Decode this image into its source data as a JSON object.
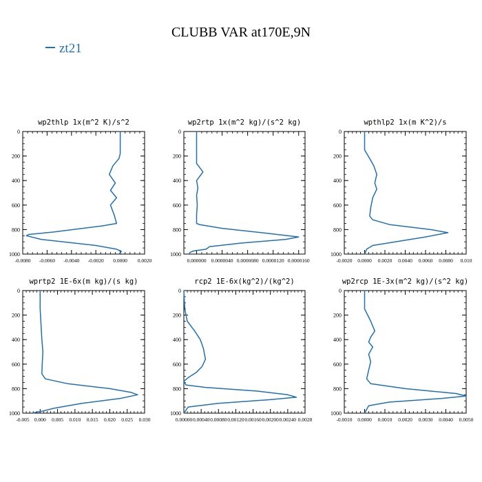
{
  "title": "CLUBB VAR at170E,9N",
  "legend": {
    "label": "zt21",
    "color": "#1f6fb4"
  },
  "chart_data": [
    {
      "type": "line",
      "title": "wp2thlp  1x(m^2 K)/s^2",
      "xlim": [
        -0.008,
        0.002
      ],
      "xticks": [
        -0.008,
        -0.006,
        -0.004,
        -0.002,
        0.0,
        0.002
      ],
      "xticklabels": [
        "-0.0080",
        "-0.0060",
        "-0.0040",
        "-0.0020",
        "0.0000",
        "0.0020"
      ],
      "ylim": [
        0,
        1000
      ],
      "yticks": [
        0,
        200,
        400,
        600,
        800,
        1000
      ],
      "yticklabels": [
        "0",
        "200",
        "400",
        "600",
        "800",
        "1000"
      ],
      "series": [
        {
          "color": "#1f6fb4",
          "points": [
            [
              0.0,
              0
            ],
            [
              0.0,
              100
            ],
            [
              0.0,
              180
            ],
            [
              -0.0001,
              220
            ],
            [
              -0.0006,
              280
            ],
            [
              -0.0009,
              350
            ],
            [
              -0.0004,
              420
            ],
            [
              -0.0008,
              480
            ],
            [
              -0.0003,
              540
            ],
            [
              -0.0008,
              600
            ],
            [
              -0.0005,
              680
            ],
            [
              -0.0003,
              750
            ],
            [
              -0.0015,
              770
            ],
            [
              -0.0055,
              820
            ],
            [
              -0.0075,
              840
            ],
            [
              -0.0077,
              850
            ],
            [
              -0.0065,
              880
            ],
            [
              -0.002,
              930
            ],
            [
              -0.0003,
              960
            ],
            [
              0.0001,
              980
            ],
            [
              -0.0001,
              1000
            ]
          ]
        }
      ]
    },
    {
      "type": "line",
      "title": "wp2rtp  1x(m^2 kg)/(s^2 kg)",
      "xlim": [
        -2e-06,
        1.7e-05
      ],
      "xticks": [
        0.0,
        4e-06,
        8e-06,
        1.2e-05,
        1.6e-05
      ],
      "xticklabels": [
        "0.000000",
        "0.0000040",
        "0.0000080",
        "0.0000120",
        "0.0000160"
      ],
      "ylim": [
        0,
        1000
      ],
      "yticks": [
        0,
        200,
        400,
        600,
        800,
        1000
      ],
      "yticklabels": [
        "0",
        "200",
        "400",
        "600",
        "800",
        "1000"
      ],
      "series": [
        {
          "color": "#1f6fb4",
          "points": [
            [
              0.0,
              0
            ],
            [
              0.0,
              120
            ],
            [
              0.0,
              260
            ],
            [
              1e-06,
              330
            ],
            [
              0.0,
              400
            ],
            [
              2e-07,
              460
            ],
            [
              0.0,
              520
            ],
            [
              1e-07,
              600
            ],
            [
              0.0,
              680
            ],
            [
              0.0,
              750
            ],
            [
              5e-07,
              760
            ],
            [
              4e-06,
              790
            ],
            [
              1.1e-05,
              830
            ],
            [
              1.6e-05,
              860
            ],
            [
              1.4e-05,
              880
            ],
            [
              7e-06,
              910
            ],
            [
              2e-06,
              940
            ],
            [
              1.5e-06,
              960
            ],
            [
              -5e-07,
              975
            ],
            [
              -1e-06,
              985
            ],
            [
              -1.2e-06,
              1000
            ]
          ]
        }
      ]
    },
    {
      "type": "line",
      "title": "wpthlp2  1x(m K^2)/s",
      "xlim": [
        -0.002,
        0.01
      ],
      "xticks": [
        -0.002,
        0.0,
        0.002,
        0.004,
        0.006,
        0.008,
        0.01
      ],
      "xticklabels": [
        "-0.0020",
        "0.0000",
        "0.0020",
        "0.0040",
        "0.0060",
        "0.0080",
        "0.010"
      ],
      "ylim": [
        0,
        1000
      ],
      "yticks": [
        0,
        200,
        400,
        600,
        800,
        1000
      ],
      "yticklabels": [
        "0",
        "200",
        "400",
        "600",
        "800",
        "1000"
      ],
      "series": [
        {
          "color": "#1f6fb4",
          "points": [
            [
              0.0,
              0
            ],
            [
              0.0,
              150
            ],
            [
              0.0005,
              220
            ],
            [
              0.0009,
              280
            ],
            [
              0.0012,
              350
            ],
            [
              0.001,
              420
            ],
            [
              0.0012,
              470
            ],
            [
              0.0008,
              540
            ],
            [
              0.0006,
              620
            ],
            [
              0.0005,
              690
            ],
            [
              0.0008,
              720
            ],
            [
              0.0025,
              760
            ],
            [
              0.0065,
              800
            ],
            [
              0.0082,
              825
            ],
            [
              0.006,
              860
            ],
            [
              0.003,
              900
            ],
            [
              0.0008,
              930
            ],
            [
              0.0002,
              960
            ],
            [
              0.0,
              1000
            ]
          ]
        }
      ]
    },
    {
      "type": "line",
      "title": "wprtp2  1E-6x(m kg)/(s kg)",
      "xlim": [
        -0.005,
        0.03
      ],
      "xticks": [
        -0.005,
        0.0,
        0.005,
        0.01,
        0.015,
        0.02,
        0.025,
        0.03
      ],
      "xticklabels": [
        "-0.005",
        "0.000",
        "0.005",
        "0.010",
        "0.015",
        "0.020",
        "0.025",
        "0.030"
      ],
      "ylim": [
        0,
        1000
      ],
      "yticks": [
        0,
        200,
        400,
        600,
        800,
        1000
      ],
      "yticklabels": [
        "0",
        "200",
        "400",
        "600",
        "800",
        "1000"
      ],
      "series": [
        {
          "color": "#1f6fb4",
          "points": [
            [
              0.0,
              0
            ],
            [
              0.0,
              150
            ],
            [
              0.0003,
              300
            ],
            [
              0.0005,
              400
            ],
            [
              0.0008,
              500
            ],
            [
              0.0006,
              600
            ],
            [
              0.0005,
              680
            ],
            [
              0.0015,
              720
            ],
            [
              0.008,
              760
            ],
            [
              0.02,
              800
            ],
            [
              0.026,
              830
            ],
            [
              0.028,
              850
            ],
            [
              0.023,
              880
            ],
            [
              0.012,
              920
            ],
            [
              0.004,
              960
            ],
            [
              0.0005,
              985
            ],
            [
              -0.0015,
              995
            ],
            [
              -0.002,
              1000
            ]
          ]
        }
      ]
    },
    {
      "type": "line",
      "title": "rcp2  1E-6x(kg^2)/(kg^2)",
      "xlim": [
        0.0,
        0.0028
      ],
      "xticks": [
        0.0,
        0.0004,
        0.0008,
        0.0012,
        0.0016,
        0.002,
        0.0024,
        0.0028
      ],
      "xticklabels": [
        "0.00000",
        "0.00040",
        "0.00080",
        "0.00120",
        "0.00160",
        "0.00200",
        "0.00240",
        "0.0028"
      ],
      "ylim": [
        0,
        1000
      ],
      "yticks": [
        0,
        200,
        400,
        600,
        800,
        1000
      ],
      "yticklabels": [
        "0",
        "200",
        "400",
        "600",
        "800",
        "1000"
      ],
      "series": [
        {
          "color": "#1f6fb4",
          "points": [
            [
              0.0,
              0
            ],
            [
              2e-05,
              150
            ],
            [
              8e-05,
              250
            ],
            [
              0.00025,
              330
            ],
            [
              0.00038,
              400
            ],
            [
              0.00045,
              470
            ],
            [
              0.0005,
              560
            ],
            [
              0.00042,
              620
            ],
            [
              0.00028,
              670
            ],
            [
              0.0001,
              710
            ],
            [
              0.0,
              740
            ],
            [
              5e-05,
              770
            ],
            [
              0.0005,
              790
            ],
            [
              0.0017,
              820
            ],
            [
              0.0024,
              850
            ],
            [
              0.0026,
              870
            ],
            [
              0.002,
              890
            ],
            [
              0.0008,
              920
            ],
            [
              0.0001,
              950
            ],
            [
              0.0,
              1000
            ]
          ]
        }
      ]
    },
    {
      "type": "line",
      "title": "wp2rcp  1E-3x(m^2 kg)/(s^2 kg)",
      "xlim": [
        -0.001,
        0.005
      ],
      "xticks": [
        -0.001,
        0.0,
        0.001,
        0.002,
        0.003,
        0.004,
        0.005
      ],
      "xticklabels": [
        "-0.0010",
        "0.0000",
        "0.0010",
        "0.0020",
        "0.0030",
        "0.0040",
        "0.0050"
      ],
      "ylim": [
        0,
        1000
      ],
      "yticks": [
        0,
        200,
        400,
        600,
        800,
        1000
      ],
      "yticklabels": [
        "0",
        "200",
        "400",
        "600",
        "800",
        "1000"
      ],
      "series": [
        {
          "color": "#1f6fb4",
          "points": [
            [
              0.0,
              0
            ],
            [
              0.0,
              150
            ],
            [
              0.0003,
              250
            ],
            [
              0.0005,
              330
            ],
            [
              0.0003,
              380
            ],
            [
              0.0002,
              420
            ],
            [
              0.0004,
              460
            ],
            [
              0.0002,
              520
            ],
            [
              0.0003,
              580
            ],
            [
              0.0002,
              650
            ],
            [
              0.0001,
              720
            ],
            [
              0.0003,
              760
            ],
            [
              0.002,
              800
            ],
            [
              0.0045,
              840
            ],
            [
              0.005,
              860
            ],
            [
              0.0038,
              880
            ],
            [
              0.0012,
              910
            ],
            [
              0.0002,
              940
            ],
            [
              0.0,
              1000
            ]
          ]
        }
      ]
    }
  ]
}
